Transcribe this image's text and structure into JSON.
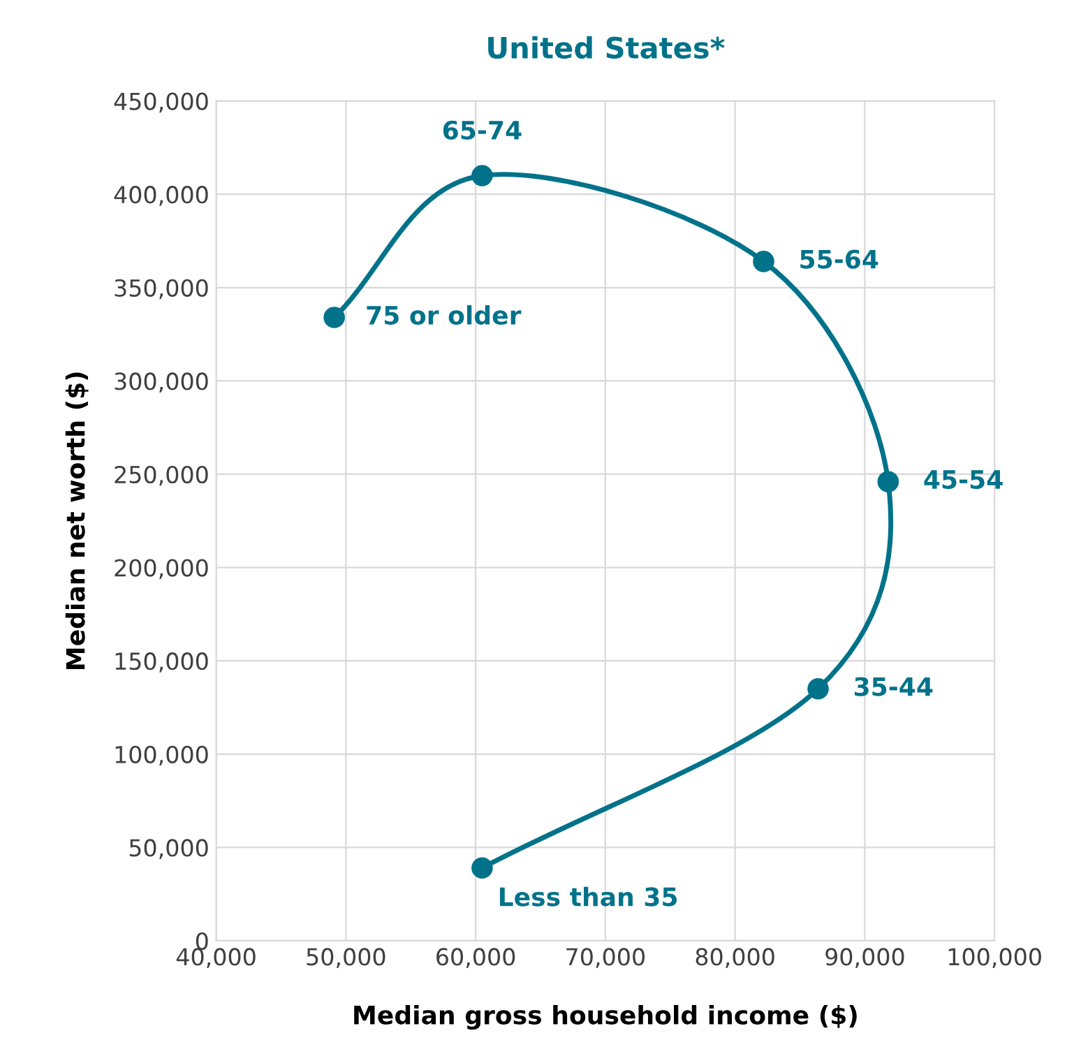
{
  "chart_data": {
    "type": "line",
    "title": "United States*",
    "xlabel": "Median gross household income ($)",
    "ylabel": "Median net worth ($)",
    "series": [
      {
        "color": "#00728a",
        "x": [
          60500,
          86400,
          91800,
          82200,
          60500,
          49100
        ],
        "values": [
          39000,
          135000,
          246000,
          364000,
          410000,
          334000
        ]
      }
    ],
    "annotations": [
      {
        "text": "Less than 35",
        "x": 60500,
        "y": 39000
      },
      {
        "text": "35-44",
        "x": 86400,
        "y": 135000
      },
      {
        "text": "45-54",
        "x": 91800,
        "y": 246000
      },
      {
        "text": "55-64",
        "x": 82200,
        "y": 364000
      },
      {
        "text": "65-74",
        "x": 60500,
        "y": 410000
      },
      {
        "text": "75 or older",
        "x": 49100,
        "y": 334000
      }
    ],
    "xlim": [
      40000,
      100000
    ],
    "xticks": [
      {
        "value": 40000,
        "label": "40,000"
      },
      {
        "value": 50000,
        "label": "50,000"
      },
      {
        "value": 60000,
        "label": "60,000"
      },
      {
        "value": 70000,
        "label": "70,000"
      },
      {
        "value": 80000,
        "label": "80,000"
      },
      {
        "value": 90000,
        "label": "90,000"
      },
      {
        "value": 100000,
        "label": "100,000"
      }
    ],
    "ylim": [
      0,
      450000
    ],
    "yticks": [
      0,
      {
        "value": 50000,
        "label": "50,000"
      },
      {
        "value": 100000,
        "label": "100,000"
      },
      {
        "value": 150000,
        "label": "150,000"
      },
      {
        "value": 200000,
        "label": "200,000"
      },
      {
        "value": 250000,
        "label": "250,000"
      },
      {
        "value": 300000,
        "label": "300,000"
      },
      {
        "value": 350000,
        "label": "350,000"
      },
      {
        "value": 400000,
        "label": "400,000"
      },
      {
        "value": 450000,
        "label": "450,000"
      }
    ],
    "grid": true,
    "marker": "circle",
    "line_style": "solid"
  }
}
